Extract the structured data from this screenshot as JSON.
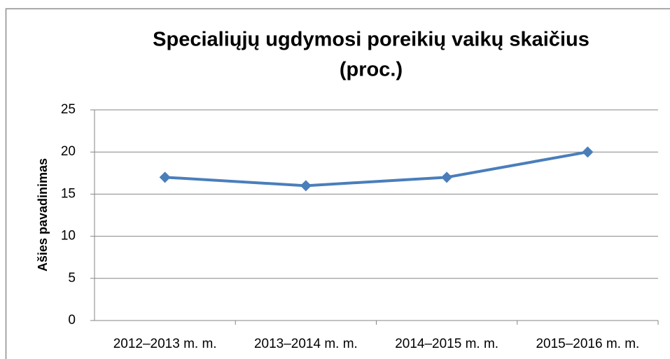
{
  "chart_data": {
    "type": "line",
    "title": [
      "Specialiųjų ugdymosi poreikių vaikų skaičius",
      "(proc.)"
    ],
    "y_label": "Ašies pavadinimas",
    "categories": [
      "2012–2013 m. m.",
      "2013–2014 m. m.",
      "2014–2015 m. m.",
      "2015–2016 m. m."
    ],
    "series": [
      {
        "name": "Specialiųjų ugdymosi poreikių vaikų skaičius",
        "color": "#4a7ebb",
        "values": [
          17,
          16,
          17,
          20
        ]
      }
    ],
    "ylim": [
      0,
      25
    ],
    "yticks": [
      0,
      5,
      10,
      15,
      20,
      25
    ],
    "grid": true
  }
}
